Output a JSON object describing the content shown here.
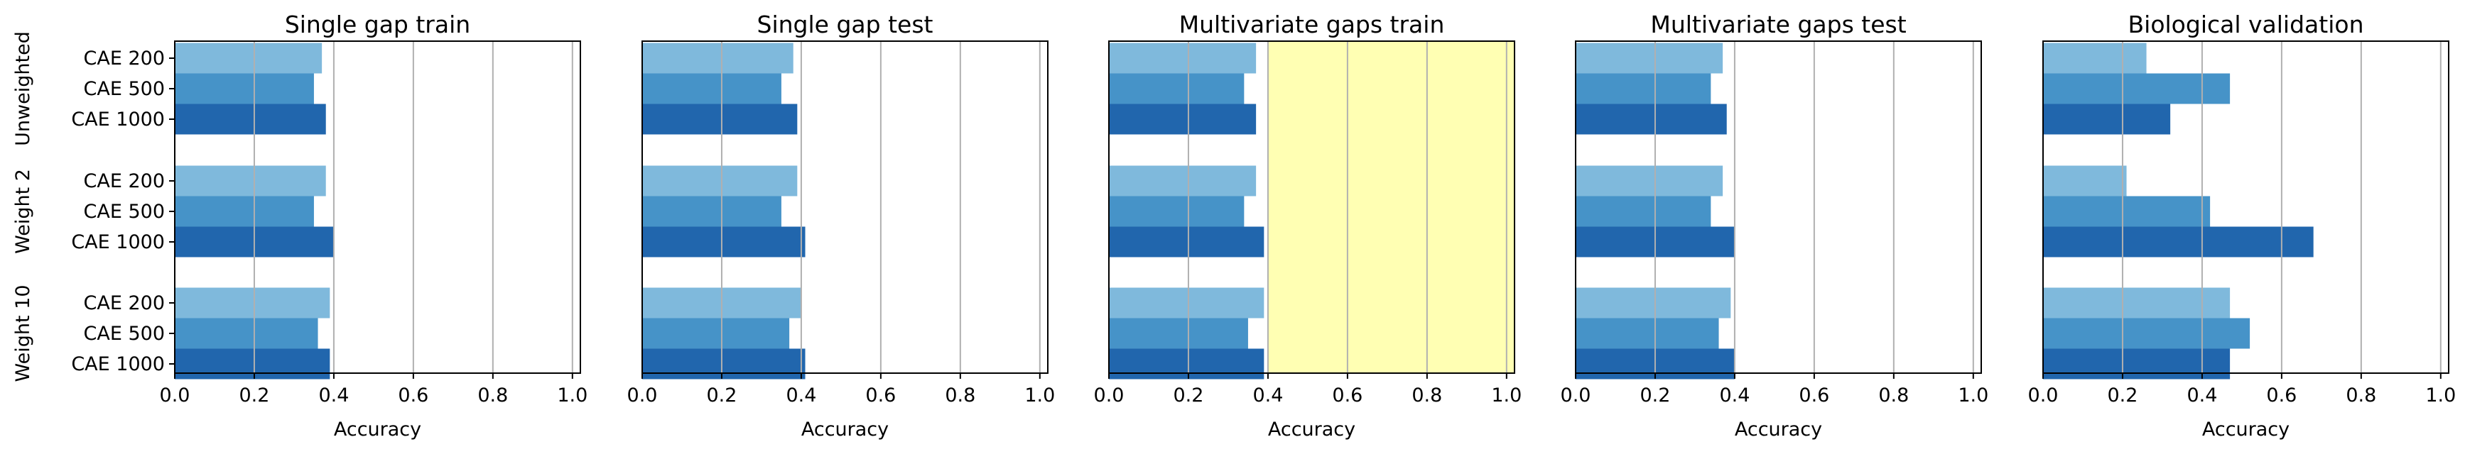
{
  "chart_data": {
    "type": "bar",
    "orientation": "horizontal",
    "xlabel": "Accuracy",
    "xlim": [
      0,
      1.02
    ],
    "xticks": [
      "0.0",
      "0.2",
      "0.4",
      "0.6",
      "0.8",
      "1.0"
    ],
    "grid": "vertical",
    "groups": [
      {
        "label": "Unweighted",
        "bars": [
          "CAE 200",
          "CAE 500",
          "CAE 1000"
        ]
      },
      {
        "label": "Weight 2",
        "bars": [
          "CAE 200",
          "CAE 500",
          "CAE 1000"
        ]
      },
      {
        "label": "Weight 10",
        "bars": [
          "CAE 200",
          "CAE 500",
          "CAE 1000"
        ]
      }
    ],
    "bar_colors": [
      "#7fb9dc",
      "#4693c8",
      "#2166ad"
    ],
    "highlight_color": "#ffffb3",
    "panels": [
      {
        "title": "Single gap train",
        "highlight": null,
        "values": [
          [
            0.37,
            0.35,
            0.38
          ],
          [
            0.38,
            0.35,
            0.4
          ],
          [
            0.39,
            0.36,
            0.39
          ]
        ]
      },
      {
        "title": "Single gap test",
        "highlight": null,
        "values": [
          [
            0.38,
            0.35,
            0.39
          ],
          [
            0.39,
            0.35,
            0.41
          ],
          [
            0.4,
            0.37,
            0.41
          ]
        ]
      },
      {
        "title": "Multivariate gaps train",
        "highlight": [
          0.4,
          1.02
        ],
        "values": [
          [
            0.37,
            0.34,
            0.37
          ],
          [
            0.37,
            0.34,
            0.39
          ],
          [
            0.39,
            0.35,
            0.39
          ]
        ]
      },
      {
        "title": "Multivariate gaps test",
        "highlight": null,
        "values": [
          [
            0.37,
            0.34,
            0.38
          ],
          [
            0.37,
            0.34,
            0.4
          ],
          [
            0.39,
            0.36,
            0.4
          ]
        ]
      },
      {
        "title": "Biological validation",
        "highlight": null,
        "values": [
          [
            0.26,
            0.47,
            0.32
          ],
          [
            0.21,
            0.42,
            0.68
          ],
          [
            0.47,
            0.52,
            0.47
          ]
        ]
      }
    ]
  }
}
